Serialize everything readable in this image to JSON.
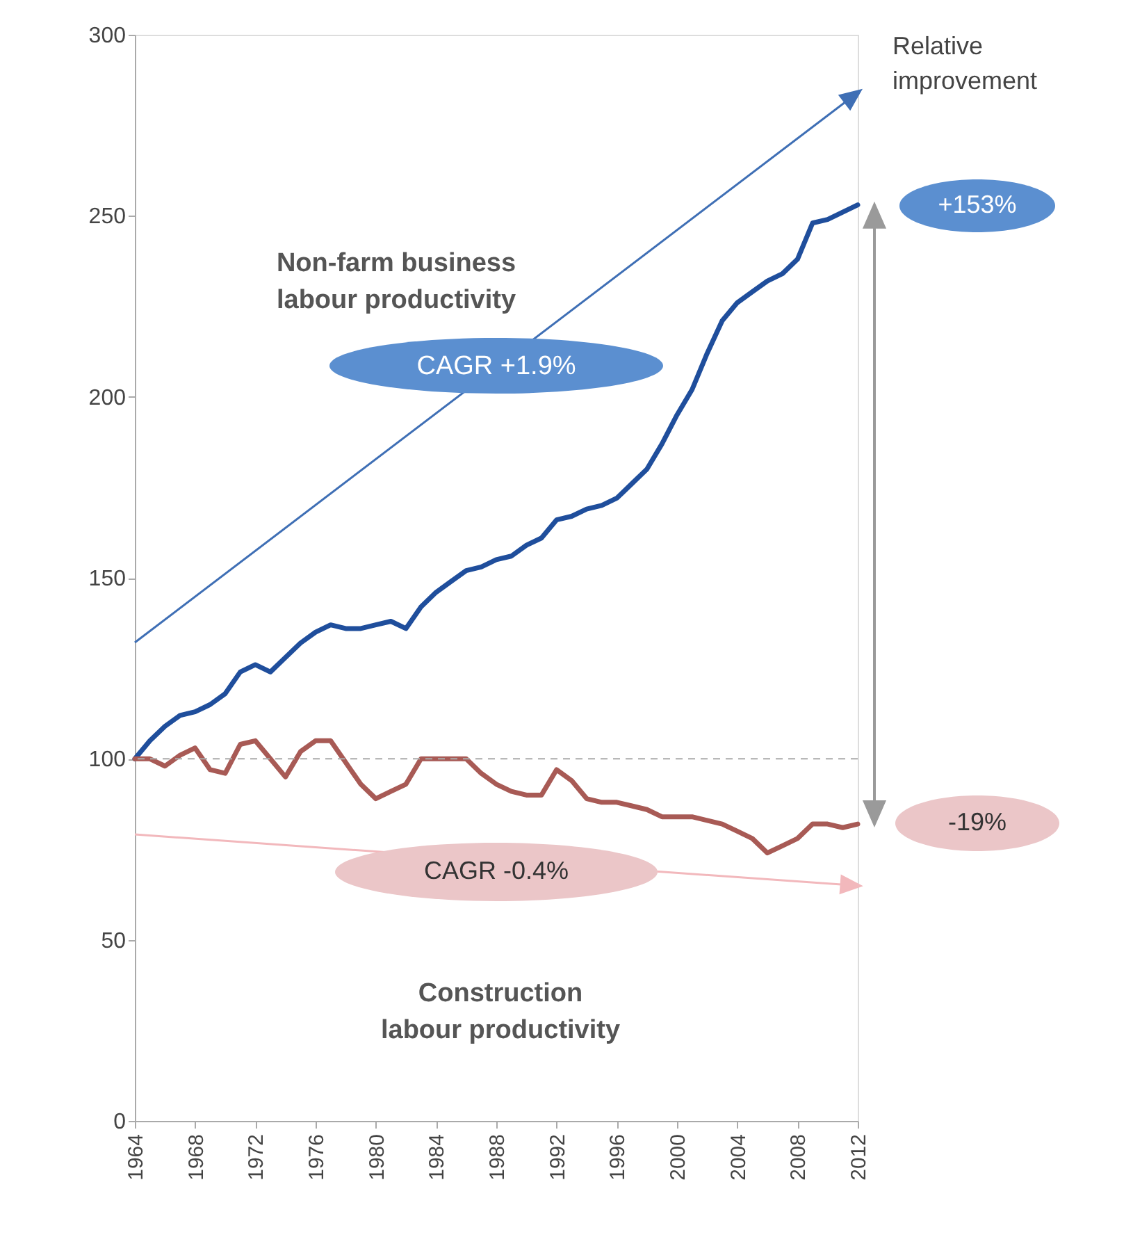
{
  "chart_data": {
    "type": "line",
    "x": [
      1964,
      1965,
      1966,
      1967,
      1968,
      1969,
      1970,
      1971,
      1972,
      1973,
      1974,
      1975,
      1976,
      1977,
      1978,
      1979,
      1980,
      1981,
      1982,
      1983,
      1984,
      1985,
      1986,
      1987,
      1988,
      1989,
      1990,
      1991,
      1992,
      1993,
      1994,
      1995,
      1996,
      1997,
      1998,
      1999,
      2000,
      2001,
      2002,
      2003,
      2004,
      2005,
      2006,
      2007,
      2008,
      2009,
      2010,
      2011,
      2012
    ],
    "series": [
      {
        "color": "#1f4e9c",
        "values": [
          100,
          105,
          109,
          112,
          113,
          115,
          118,
          124,
          126,
          124,
          128,
          132,
          135,
          137,
          136,
          136,
          137,
          138,
          136,
          142,
          146,
          149,
          152,
          153,
          155,
          156,
          159,
          161,
          166,
          167,
          169,
          170,
          172,
          176,
          180,
          187,
          195,
          202,
          212,
          221,
          226,
          229,
          232,
          234,
          238,
          248,
          249,
          251,
          253
        ]
      },
      {
        "color": "#a85a55",
        "values": [
          100,
          100,
          98,
          101,
          103,
          97,
          96,
          104,
          105,
          100,
          95,
          102,
          105,
          105,
          99,
          93,
          89,
          91,
          93,
          100,
          100,
          100,
          100,
          96,
          93,
          91,
          90,
          90,
          97,
          94,
          89,
          88,
          88,
          87,
          86,
          84,
          84,
          84,
          83,
          82,
          80,
          78,
          74,
          76,
          78,
          82,
          82,
          81,
          82
        ]
      }
    ],
    "xlim": [
      1964,
      2012
    ],
    "xticks": [
      1964,
      1968,
      1972,
      1976,
      1980,
      1984,
      1988,
      1992,
      1996,
      2000,
      2004,
      2008,
      2012
    ],
    "ylim": [
      0,
      300
    ],
    "yticks": [
      0,
      50,
      100,
      150,
      200,
      250,
      300
    ],
    "ref_lines": [
      {
        "axis": "y",
        "value": 100,
        "color": "#aaaaaa",
        "line_style": "dashed"
      }
    ],
    "annotations": [
      "Non-farm business\nlabour productivity",
      "CAGR +1.9%",
      "+153%",
      "Relative\nimprovement",
      "-19%",
      "CAGR -0.4%",
      "Construction\nlabour productivity"
    ],
    "grid": false,
    "marker": "none",
    "line_style": "solid"
  }
}
